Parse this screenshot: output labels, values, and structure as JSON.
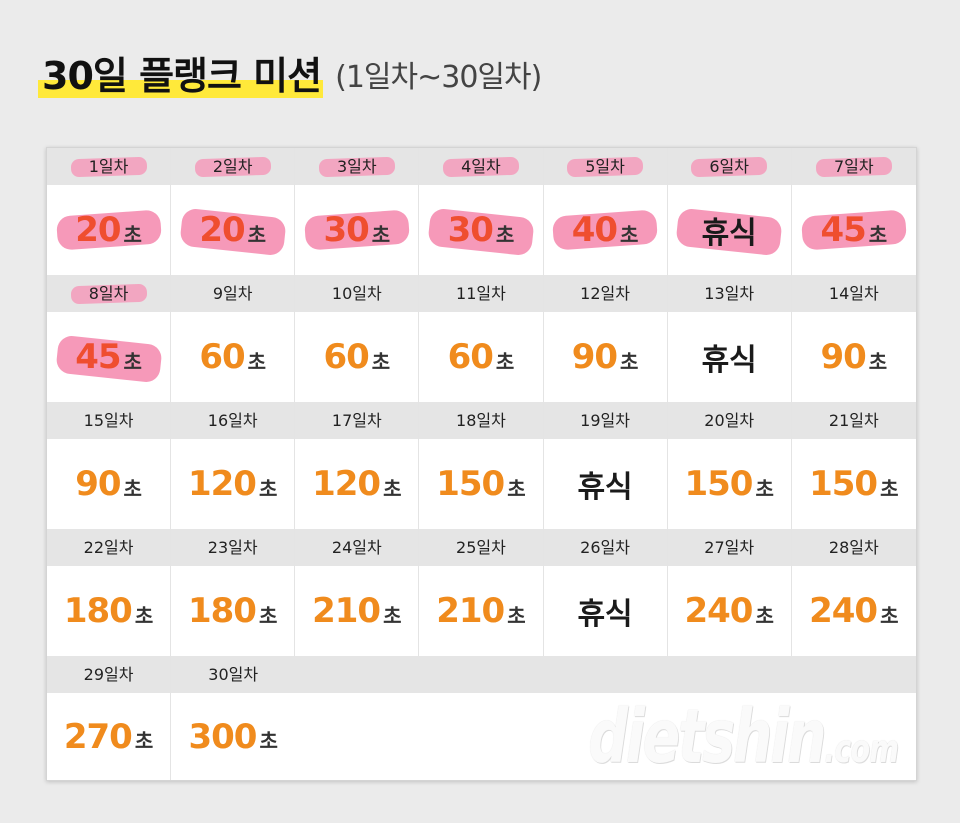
{
  "title": {
    "main": "30일 플랭크 미션",
    "sub": "(1일차~30일차)"
  },
  "unit": "초",
  "days": [
    {
      "label": "1일차",
      "value": "20",
      "rest": false,
      "done": true
    },
    {
      "label": "2일차",
      "value": "20",
      "rest": false,
      "done": true
    },
    {
      "label": "3일차",
      "value": "30",
      "rest": false,
      "done": true
    },
    {
      "label": "4일차",
      "value": "30",
      "rest": false,
      "done": true
    },
    {
      "label": "5일차",
      "value": "40",
      "rest": false,
      "done": true
    },
    {
      "label": "6일차",
      "value": "휴식",
      "rest": true,
      "done": true
    },
    {
      "label": "7일차",
      "value": "45",
      "rest": false,
      "done": true
    },
    {
      "label": "8일차",
      "value": "45",
      "rest": false,
      "done": true
    },
    {
      "label": "9일차",
      "value": "60",
      "rest": false,
      "done": false
    },
    {
      "label": "10일차",
      "value": "60",
      "rest": false,
      "done": false
    },
    {
      "label": "11일차",
      "value": "60",
      "rest": false,
      "done": false
    },
    {
      "label": "12일차",
      "value": "90",
      "rest": false,
      "done": false
    },
    {
      "label": "13일차",
      "value": "휴식",
      "rest": true,
      "done": false
    },
    {
      "label": "14일차",
      "value": "90",
      "rest": false,
      "done": false
    },
    {
      "label": "15일차",
      "value": "90",
      "rest": false,
      "done": false
    },
    {
      "label": "16일차",
      "value": "120",
      "rest": false,
      "done": false
    },
    {
      "label": "17일차",
      "value": "120",
      "rest": false,
      "done": false
    },
    {
      "label": "18일차",
      "value": "150",
      "rest": false,
      "done": false
    },
    {
      "label": "19일차",
      "value": "휴식",
      "rest": true,
      "done": false
    },
    {
      "label": "20일차",
      "value": "150",
      "rest": false,
      "done": false
    },
    {
      "label": "21일차",
      "value": "150",
      "rest": false,
      "done": false
    },
    {
      "label": "22일차",
      "value": "180",
      "rest": false,
      "done": false
    },
    {
      "label": "23일차",
      "value": "180",
      "rest": false,
      "done": false
    },
    {
      "label": "24일차",
      "value": "210",
      "rest": false,
      "done": false
    },
    {
      "label": "25일차",
      "value": "210",
      "rest": false,
      "done": false
    },
    {
      "label": "26일차",
      "value": "휴식",
      "rest": true,
      "done": false
    },
    {
      "label": "27일차",
      "value": "240",
      "rest": false,
      "done": false
    },
    {
      "label": "28일차",
      "value": "240",
      "rest": false,
      "done": false
    },
    {
      "label": "29일차",
      "value": "270",
      "rest": false,
      "done": false
    },
    {
      "label": "30일차",
      "value": "300",
      "rest": false,
      "done": false
    }
  ],
  "watermark": {
    "main": "dietshin",
    "suffix": ".com"
  },
  "colors": {
    "value": "#f08b1d",
    "done_value": "#ef4e2f",
    "highlight": "#f47fa8",
    "title_highlight": "#ffe93a"
  }
}
